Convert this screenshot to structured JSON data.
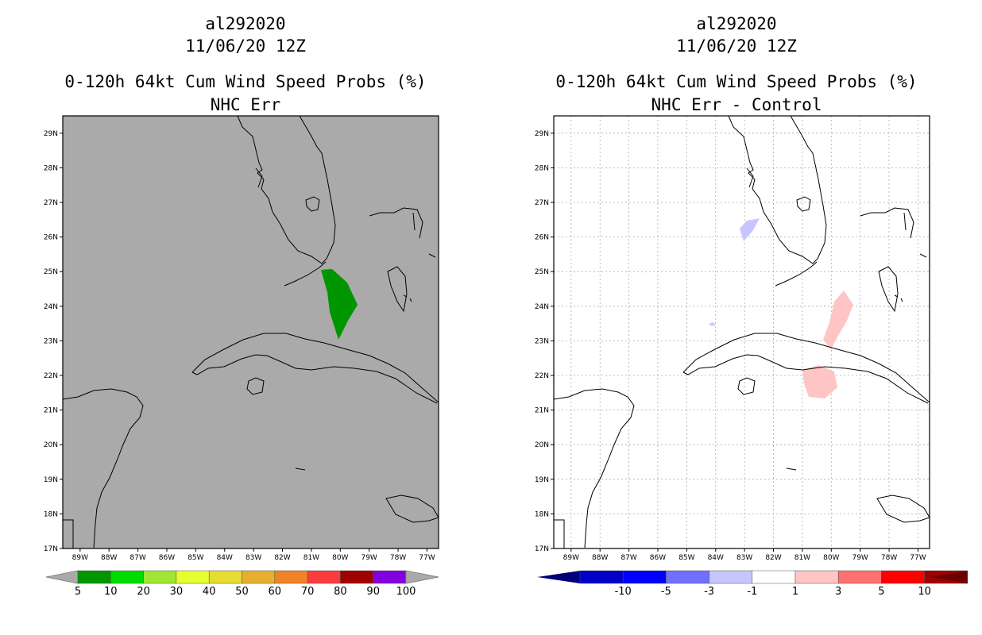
{
  "colors": {
    "land_bg_left": "#aaaaaa",
    "bg_right": "#ffffff",
    "coast": "#000000",
    "prob_green": "#009600",
    "diff_blue": "#c6c6ff",
    "diff_pink": "#ffc4c4",
    "grid": "#aaaaaa"
  },
  "left_panel": {
    "title_storm": "al292020",
    "title_time": "11/06/20 12Z",
    "title_product": "0-120h 64kt Cum Wind Speed Probs (%)",
    "title_sub": "NHC Err",
    "lat_labels": [
      "29N",
      "28N",
      "27N",
      "26N",
      "25N",
      "24N",
      "23N",
      "22N",
      "21N",
      "20N",
      "19N",
      "18N",
      "17N"
    ],
    "lon_labels": [
      "89W",
      "88W",
      "87W",
      "86W",
      "85W",
      "84W",
      "83W",
      "82W",
      "81W",
      "80W",
      "79W",
      "78W",
      "77W"
    ],
    "colorbar": {
      "colors": [
        "#009600",
        "#00dc00",
        "#a0e632",
        "#e6ff2d",
        "#e6dc32",
        "#e6af2d",
        "#f08228",
        "#fa3c3c",
        "#a00000",
        "#8200dc"
      ],
      "labels": [
        "5",
        "10",
        "20",
        "30",
        "40",
        "50",
        "60",
        "70",
        "80",
        "90",
        "100"
      ]
    }
  },
  "right_panel": {
    "title_storm": "al292020",
    "title_time": "11/06/20 12Z",
    "title_product": "0-120h 64kt Cum Wind Speed Probs (%)",
    "title_sub": "NHC Err - Control",
    "lat_labels": [
      "29N",
      "28N",
      "27N",
      "26N",
      "25N",
      "24N",
      "23N",
      "22N",
      "21N",
      "20N",
      "19N",
      "18N",
      "17N"
    ],
    "lon_labels": [
      "89W",
      "88W",
      "87W",
      "86W",
      "85W",
      "84W",
      "83W",
      "82W",
      "81W",
      "80W",
      "79W",
      "78W",
      "77W"
    ],
    "colorbar": {
      "colors": [
        "#0000c8",
        "#0000ff",
        "#7070ff",
        "#c6c6ff",
        "#ffffff",
        "#ffc4c4",
        "#ff7070",
        "#ff0000",
        "#a00000"
      ],
      "end_left": "#00007a",
      "end_right": "#6e0000",
      "labels": [
        "-10",
        "-5",
        "-3",
        "-1",
        "1",
        "3",
        "5",
        "10"
      ]
    }
  }
}
